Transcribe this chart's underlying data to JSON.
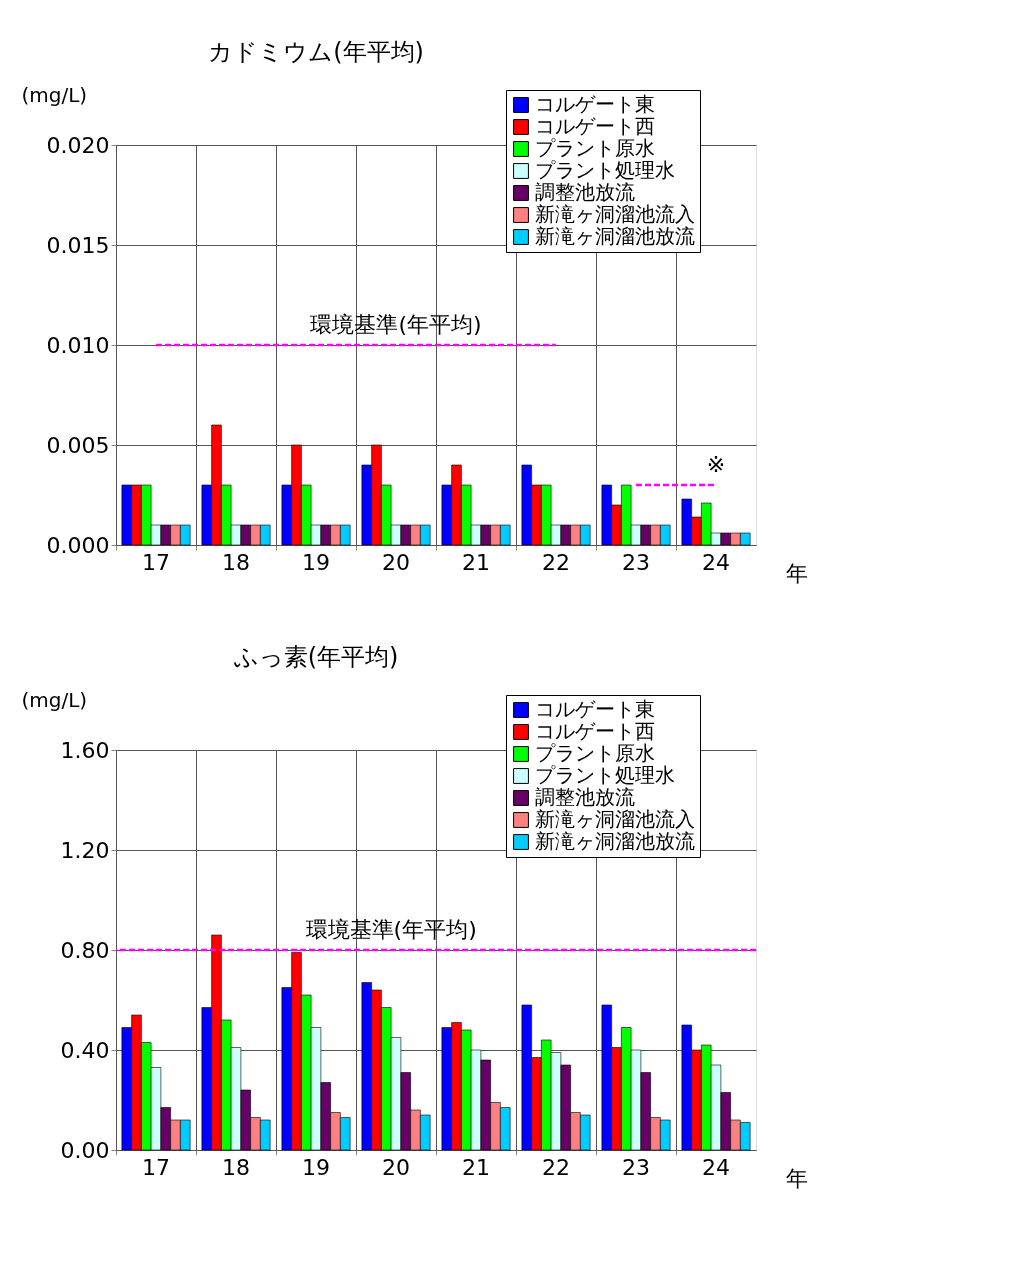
{
  "chart_data": [
    {
      "type": "bar",
      "title": "カドミウム(年平均)",
      "ylabel": "(mg/L)",
      "xlabel": "年",
      "categories": [
        "17",
        "18",
        "19",
        "20",
        "21",
        "22",
        "23",
        "24"
      ],
      "ylim": [
        0,
        0.02
      ],
      "yticks": [
        {
          "value": 0,
          "label": "0.000"
        },
        {
          "value": 0.005,
          "label": "0.005"
        },
        {
          "value": 0.01,
          "label": "0.010"
        },
        {
          "value": 0.015,
          "label": "0.015"
        },
        {
          "value": 0.02,
          "label": "0.020"
        }
      ],
      "grid": true,
      "legend": "top right",
      "series": [
        {
          "name": "コルゲート東",
          "color": "#0000ff",
          "values": [
            0.003,
            0.003,
            0.003,
            0.004,
            0.003,
            0.004,
            0.003,
            0.0023
          ]
        },
        {
          "name": "コルゲート西",
          "color": "#ff0000",
          "values": [
            0.003,
            0.006,
            0.005,
            0.005,
            0.004,
            0.003,
            0.002,
            0.0014
          ]
        },
        {
          "name": "プラント原水",
          "color": "#00ff00",
          "values": [
            0.003,
            0.003,
            0.003,
            0.003,
            0.003,
            0.003,
            0.003,
            0.0021
          ]
        },
        {
          "name": "プラント処理水",
          "color": "#ccffff",
          "values": [
            0.001,
            0.001,
            0.001,
            0.001,
            0.001,
            0.001,
            0.001,
            0.0006
          ]
        },
        {
          "name": "調整池放流",
          "color": "#660066",
          "values": [
            0.001,
            0.001,
            0.001,
            0.001,
            0.001,
            0.001,
            0.001,
            0.0006
          ]
        },
        {
          "name": "新滝ヶ洞溜池流入",
          "color": "#ff8080",
          "values": [
            0.001,
            0.001,
            0.001,
            0.001,
            0.001,
            0.001,
            0.001,
            0.0006
          ]
        },
        {
          "name": "新滝ヶ洞溜池放流",
          "color": "#00ccff",
          "values": [
            0.001,
            0.001,
            0.001,
            0.001,
            0.001,
            0.001,
            0.001,
            0.0006
          ]
        },
        {
          "type": "line",
          "color": "#ff00ff",
          "line_style": "dashed",
          "values": [
            0.01,
            0.01,
            0.01,
            0.01,
            0.01,
            0.01,
            null,
            null
          ]
        },
        {
          "type": "line",
          "color": "#ff00ff",
          "line_style": "dashed",
          "values": [
            null,
            null,
            null,
            null,
            null,
            null,
            0.003,
            0.003
          ]
        }
      ],
      "annotations": [
        {
          "text": "環境基準(年平均)",
          "x": "20",
          "y": 0.01
        },
        {
          "text": "※",
          "x": "24",
          "y": 0.003
        }
      ]
    },
    {
      "type": "bar",
      "title": "ふっ素(年平均)",
      "ylabel": "(mg/L)",
      "xlabel": "年",
      "categories": [
        "17",
        "18",
        "19",
        "20",
        "21",
        "22",
        "23",
        "24"
      ],
      "ylim": [
        0,
        1.6
      ],
      "yticks": [
        {
          "value": 0,
          "label": "0.00"
        },
        {
          "value": 0.4,
          "label": "0.40"
        },
        {
          "value": 0.8,
          "label": "0.80"
        },
        {
          "value": 1.2,
          "label": "1.20"
        },
        {
          "value": 1.6,
          "label": "1.60"
        }
      ],
      "grid": true,
      "legend": "top right",
      "series": [
        {
          "name": "コルゲート東",
          "color": "#0000ff",
          "values": [
            0.49,
            0.57,
            0.65,
            0.67,
            0.49,
            0.58,
            0.58,
            0.5
          ]
        },
        {
          "name": "コルゲート西",
          "color": "#ff0000",
          "values": [
            0.54,
            0.86,
            0.79,
            0.64,
            0.51,
            0.37,
            0.41,
            0.4
          ]
        },
        {
          "name": "プラント原水",
          "color": "#00ff00",
          "values": [
            0.43,
            0.52,
            0.62,
            0.57,
            0.48,
            0.44,
            0.49,
            0.42
          ]
        },
        {
          "name": "プラント処理水",
          "color": "#ccffff",
          "values": [
            0.33,
            0.41,
            0.49,
            0.45,
            0.4,
            0.39,
            0.4,
            0.34
          ]
        },
        {
          "name": "調整池放流",
          "color": "#660066",
          "values": [
            0.17,
            0.24,
            0.27,
            0.31,
            0.36,
            0.34,
            0.31,
            0.23
          ]
        },
        {
          "name": "新滝ヶ洞溜池流入",
          "color": "#ff8080",
          "values": [
            0.12,
            0.13,
            0.15,
            0.16,
            0.19,
            0.15,
            0.13,
            0.12
          ]
        },
        {
          "name": "新滝ヶ洞溜池放流",
          "color": "#00ccff",
          "values": [
            0.12,
            0.12,
            0.13,
            0.14,
            0.17,
            0.14,
            0.12,
            0.11
          ]
        }
      ],
      "ref_lines": [
        {
          "axis": "y",
          "value": 0.8,
          "label": "環境基準(年平均)",
          "color": "#ff00ff",
          "line_style": "dashed"
        }
      ]
    }
  ]
}
